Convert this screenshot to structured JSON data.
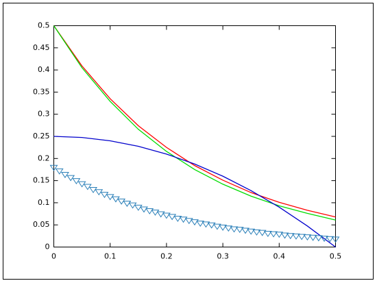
{
  "chart_data": {
    "type": "line",
    "xlim": [
      0,
      0.5
    ],
    "ylim": [
      0,
      0.5
    ],
    "xticks": [
      0,
      0.1,
      0.2,
      0.3,
      0.4,
      0.5
    ],
    "yticks": [
      0,
      0.05,
      0.1,
      0.15,
      0.2,
      0.25,
      0.3,
      0.35,
      0.4,
      0.45,
      0.5
    ],
    "series": [
      {
        "color": "#ff0000",
        "style": "line",
        "x": [
          0,
          0.05,
          0.1,
          0.15,
          0.2,
          0.25,
          0.3,
          0.35,
          0.4,
          0.45,
          0.5
        ],
        "values": [
          0.5,
          0.409,
          0.335,
          0.274,
          0.225,
          0.184,
          0.151,
          0.123,
          0.101,
          0.083,
          0.068
        ]
      },
      {
        "color": "#00dd00",
        "style": "line",
        "x": [
          0,
          0.05,
          0.1,
          0.15,
          0.2,
          0.25,
          0.3,
          0.35,
          0.4,
          0.45,
          0.5
        ],
        "values": [
          0.5,
          0.405,
          0.329,
          0.266,
          0.216,
          0.175,
          0.142,
          0.115,
          0.093,
          0.076,
          0.061
        ]
      },
      {
        "color": "#0000cc",
        "style": "line",
        "x": [
          0,
          0.05,
          0.1,
          0.15,
          0.2,
          0.25,
          0.3,
          0.35,
          0.4,
          0.45,
          0.5
        ],
        "values": [
          0.25,
          0.2475,
          0.24,
          0.2275,
          0.21,
          0.1875,
          0.16,
          0.1275,
          0.09,
          0.0475,
          0
        ]
      },
      {
        "color": "#2a7fb8",
        "style": "markers",
        "x": [
          0,
          0.01,
          0.02,
          0.03,
          0.04,
          0.05,
          0.06,
          0.07,
          0.08,
          0.09,
          0.1,
          0.11,
          0.12,
          0.13,
          0.14,
          0.15,
          0.16,
          0.17,
          0.18,
          0.19,
          0.2,
          0.21,
          0.22,
          0.23,
          0.24,
          0.25,
          0.26,
          0.27,
          0.28,
          0.29,
          0.3,
          0.31,
          0.32,
          0.33,
          0.34,
          0.35,
          0.36,
          0.37,
          0.38,
          0.39,
          0.4,
          0.41,
          0.42,
          0.43,
          0.44,
          0.45,
          0.46,
          0.47,
          0.48,
          0.49,
          0.5
        ],
        "values": [
          0.18,
          0.172,
          0.164,
          0.157,
          0.15,
          0.143,
          0.137,
          0.13,
          0.125,
          0.119,
          0.114,
          0.109,
          0.104,
          0.099,
          0.095,
          0.09,
          0.086,
          0.082,
          0.079,
          0.075,
          0.072,
          0.069,
          0.065,
          0.063,
          0.06,
          0.057,
          0.054,
          0.052,
          0.05,
          0.047,
          0.045,
          0.043,
          0.041,
          0.04,
          0.038,
          0.036,
          0.034,
          0.033,
          0.031,
          0.03,
          0.029,
          0.027,
          0.026,
          0.025,
          0.024,
          0.023,
          0.022,
          0.021,
          0.02,
          0.019,
          0.018
        ]
      }
    ]
  }
}
